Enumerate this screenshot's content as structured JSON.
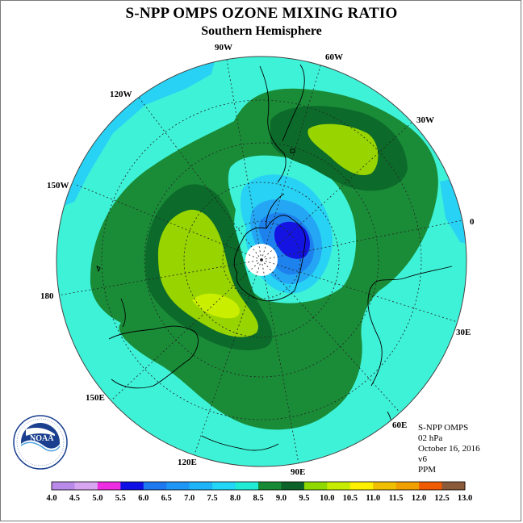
{
  "header": {
    "title": "S-NPP OMPS OZONE MIXING RATIO",
    "subtitle": "Southern Hemisphere"
  },
  "longitude_labels": [
    "90W",
    "60W",
    "30W",
    "0",
    "30E",
    "60E",
    "90E",
    "120E",
    "150E",
    "180",
    "150W",
    "120W"
  ],
  "info_block": {
    "line1": "S-NPP OMPS",
    "line2": "02 hPa",
    "line3": "October 16, 2016",
    "line4": "v6",
    "line5": "PPM"
  },
  "logo": {
    "icon": "noaa-logo-icon",
    "text": "NOAA"
  },
  "colorbar": {
    "ticks": [
      "4.0",
      "4.5",
      "5.0",
      "5.5",
      "6.0",
      "6.5",
      "7.0",
      "7.5",
      "8.0",
      "8.5",
      "9.0",
      "9.5",
      "10.0",
      "10.5",
      "11.0",
      "11.5",
      "12.0",
      "12.5",
      "13.0"
    ],
    "colors": [
      "#b98ae8",
      "#d8a6f0",
      "#ee2ce2",
      "#1010e6",
      "#1e78f0",
      "#1e96f5",
      "#1eb4f8",
      "#21d6f6",
      "#20ecd6",
      "#188a36",
      "#0c6228",
      "#8fd800",
      "#c8ec00",
      "#fff000",
      "#f0c000",
      "#f0a000",
      "#f05a00",
      "#e60000",
      "#8a5a3a"
    ]
  },
  "map_colors": {
    "band_7_5_8": "#3ef2d8",
    "band_7_7_5": "#28d2f4",
    "band_6_5_7": "#24a6f4",
    "band_6_6_5": "#1e82ee",
    "band_5_5_6": "#1414e2",
    "band_8_8_5": "#1a8c38",
    "band_8_5_9": "#0c6a2a",
    "band_9_9_5": "#98d400",
    "band_9_5_10": "#caee00"
  }
}
